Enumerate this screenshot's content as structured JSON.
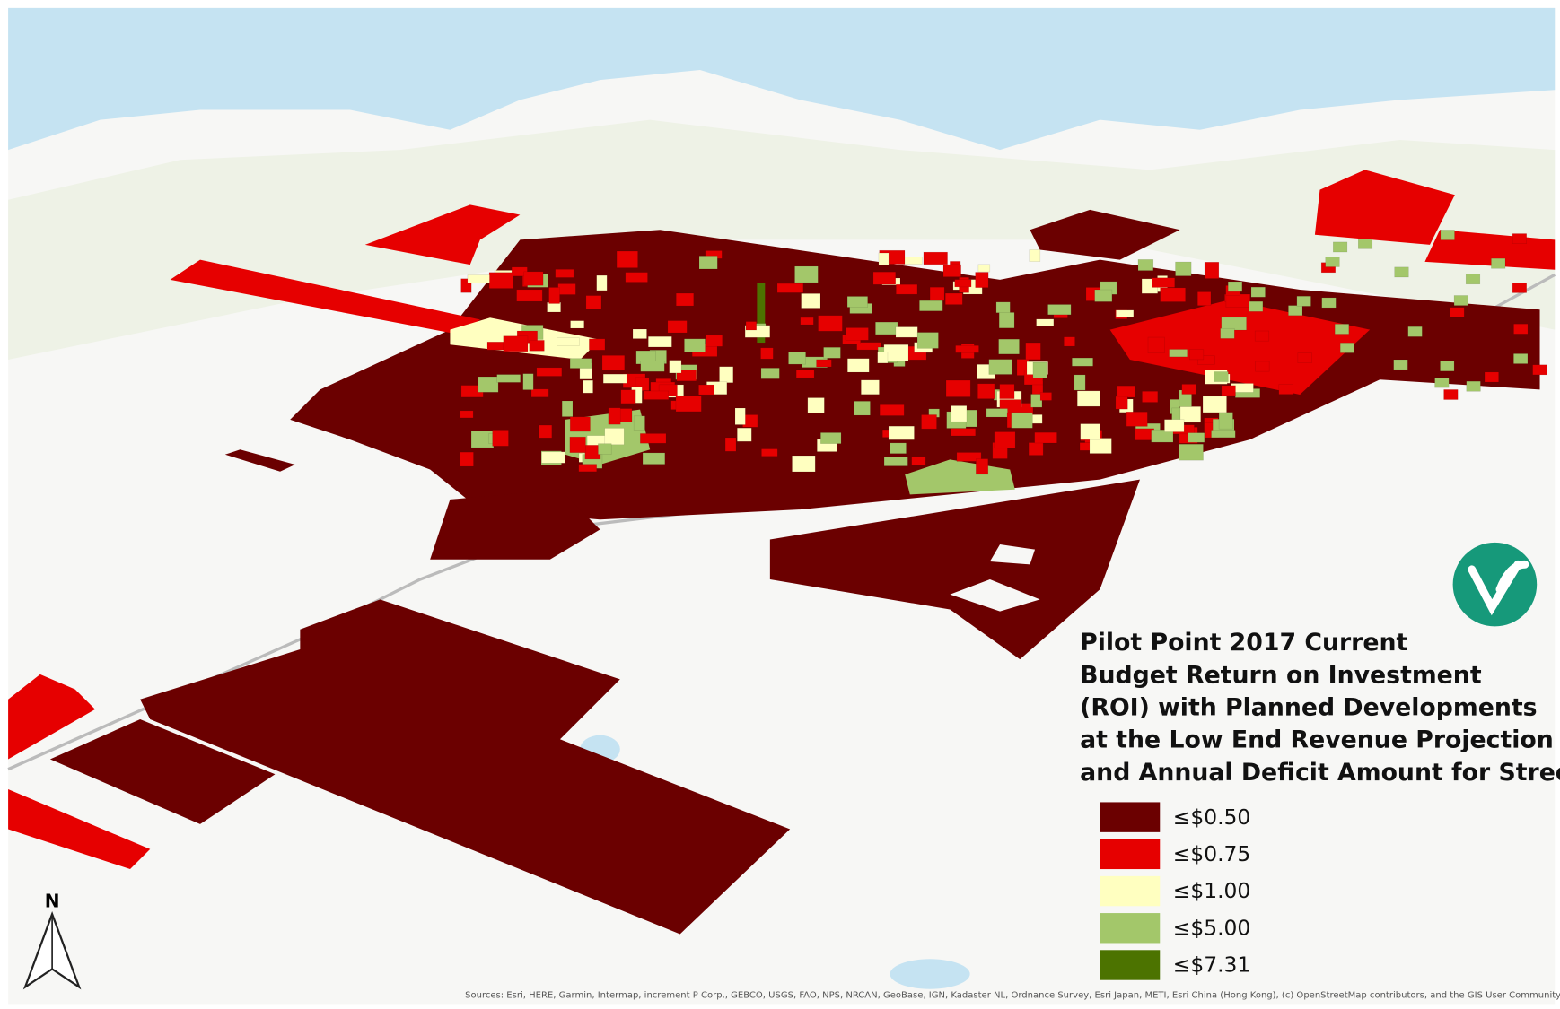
{
  "map": {
    "title_lines": [
      "Pilot Point 2017 Current",
      "Budget Return on Investment",
      "(ROI) with Planned Developments",
      "at the Low End Revenue Projection",
      "and Annual Deficit Amount for Streets"
    ],
    "legend": [
      {
        "label": "≤$0.50",
        "color": "#6b0000"
      },
      {
        "label": "≤$0.75",
        "color": "#e60000"
      },
      {
        "label": "≤$1.00",
        "color": "#ffffc0"
      },
      {
        "label": "≤$5.00",
        "color": "#a3c76a"
      },
      {
        "label": "≤$7.31",
        "color": "#4c7300"
      }
    ],
    "north_label": "N",
    "attribution": "Sources: Esri, HERE, Garmin, Intermap, increment P Corp., GEBCO, USGS, FAO, NPS, NRCAN, GeoBase, IGN, Kadaster NL, Ordnance Survey, Esri Japan, METI, Esri China (Hong Kong), (c) OpenStreetMap contributors, and the GIS User Community"
  }
}
